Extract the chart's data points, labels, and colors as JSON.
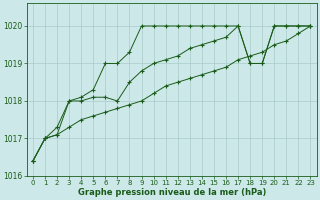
{
  "title": "Graphe pression niveau de la mer (hPa)",
  "background_color": "#cce8e8",
  "grid_color": "#aacccc",
  "line_color": "#1a5c1a",
  "marker": "+",
  "xlim": [
    -0.5,
    23.5
  ],
  "ylim": [
    1016.0,
    1020.6
  ],
  "yticks": [
    1016,
    1017,
    1018,
    1019,
    1020
  ],
  "xticks": [
    0,
    1,
    2,
    3,
    4,
    5,
    6,
    7,
    8,
    9,
    10,
    11,
    12,
    13,
    14,
    15,
    16,
    17,
    18,
    19,
    20,
    21,
    22,
    23
  ],
  "series": [
    {
      "x": [
        0,
        1,
        2,
        3,
        4,
        5,
        6,
        7,
        8,
        9,
        10,
        11,
        12,
        13,
        14,
        15,
        16,
        17,
        18,
        19,
        20,
        21,
        22,
        23
      ],
      "y": [
        1016.4,
        1017.0,
        1017.1,
        1018.0,
        1018.1,
        1018.3,
        1019.0,
        1019.0,
        1019.3,
        1020.0,
        1020.0,
        1020.0,
        1020.0,
        1020.0,
        1020.0,
        1020.0,
        1020.0,
        1020.0,
        1019.0,
        1019.0,
        1020.0,
        1020.0,
        1020.0,
        1020.0
      ]
    },
    {
      "x": [
        0,
        1,
        2,
        3,
        4,
        5,
        6,
        7,
        8,
        9,
        10,
        11,
        12,
        13,
        14,
        15,
        16,
        17,
        18,
        19,
        20,
        21,
        22,
        23
      ],
      "y": [
        1016.4,
        1017.0,
        1017.3,
        1018.0,
        1018.0,
        1018.1,
        1018.1,
        1018.0,
        1018.5,
        1018.8,
        1019.0,
        1019.1,
        1019.2,
        1019.4,
        1019.5,
        1019.6,
        1019.7,
        1020.0,
        1019.0,
        1019.0,
        1020.0,
        1020.0,
        1020.0,
        1020.0
      ]
    },
    {
      "x": [
        0,
        1,
        2,
        3,
        4,
        5,
        6,
        7,
        8,
        9,
        10,
        11,
        12,
        13,
        14,
        15,
        16,
        17,
        18,
        19,
        20,
        21,
        22,
        23
      ],
      "y": [
        1016.4,
        1017.0,
        1017.1,
        1017.3,
        1017.5,
        1017.6,
        1017.7,
        1017.8,
        1017.9,
        1018.0,
        1018.2,
        1018.4,
        1018.5,
        1018.6,
        1018.7,
        1018.8,
        1018.9,
        1019.1,
        1019.2,
        1019.3,
        1019.5,
        1019.6,
        1019.8,
        1020.0
      ]
    }
  ]
}
